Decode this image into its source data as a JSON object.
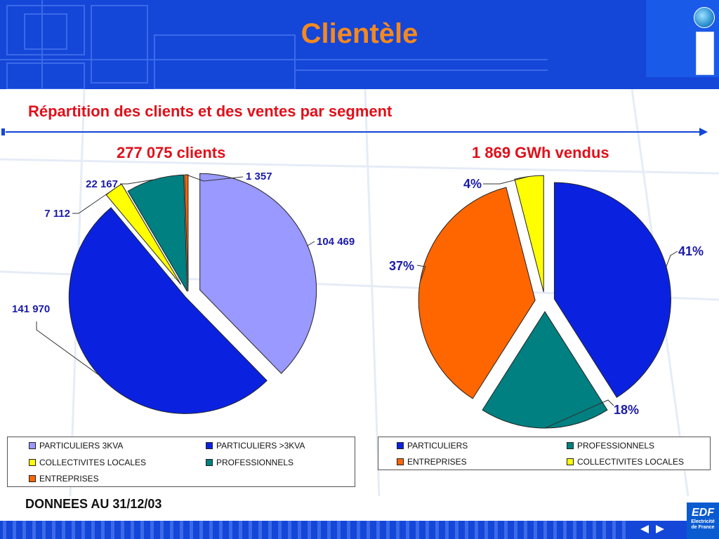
{
  "slide": {
    "title": "Clientèle",
    "subtitle": "Répartition des clients et des ventes par segment",
    "footnote": "DONNEES AU 31/12/03",
    "logo_text": "EDF",
    "logo_subtext_1": "Electricité",
    "logo_subtext_2": "de France"
  },
  "colors": {
    "header": "#1446d8",
    "title": "#f5891e",
    "accent_red": "#e0101a",
    "light_blue": "#9999ff",
    "blue": "#0a22e0",
    "yellow": "#ffff00",
    "teal": "#008080",
    "orange": "#ff6600"
  },
  "chart_data": [
    {
      "type": "pie",
      "title": "277 075 clients",
      "slices": [
        {
          "name": "PARTICULIERS 3KVA",
          "value": 104469,
          "label": "104 469",
          "color": "#9999ff"
        },
        {
          "name": "PARTICULIERS >3KVA",
          "value": 141970,
          "label": "141 970",
          "color": "#0a22e0"
        },
        {
          "name": "COLLECTIVITES LOCALES",
          "value": 7112,
          "label": "7 112",
          "color": "#ffff00"
        },
        {
          "name": "PROFESSIONNELS",
          "value": 22167,
          "label": "22 167",
          "color": "#008080"
        },
        {
          "name": "ENTREPRISES",
          "value": 1357,
          "label": "1 357",
          "color": "#ff6600"
        }
      ],
      "legend": [
        "PARTICULIERS 3KVA",
        "PARTICULIERS >3KVA",
        "COLLECTIVITES LOCALES",
        "PROFESSIONNELS",
        "ENTREPRISES"
      ]
    },
    {
      "type": "pie",
      "title": "1 869 GWh vendus",
      "slices": [
        {
          "name": "PARTICULIERS",
          "value": 41,
          "label": "41%",
          "color": "#0a22e0"
        },
        {
          "name": "PROFESSIONNELS",
          "value": 18,
          "label": "18%",
          "color": "#008080"
        },
        {
          "name": "ENTREPRISES",
          "value": 37,
          "label": "37%",
          "color": "#ff6600"
        },
        {
          "name": "COLLECTIVITES LOCALES",
          "value": 4,
          "label": "4%",
          "color": "#ffff00"
        }
      ],
      "legend": [
        "PARTICULIERS",
        "PROFESSIONNELS",
        "ENTREPRISES",
        "COLLECTIVITES LOCALES"
      ]
    }
  ]
}
